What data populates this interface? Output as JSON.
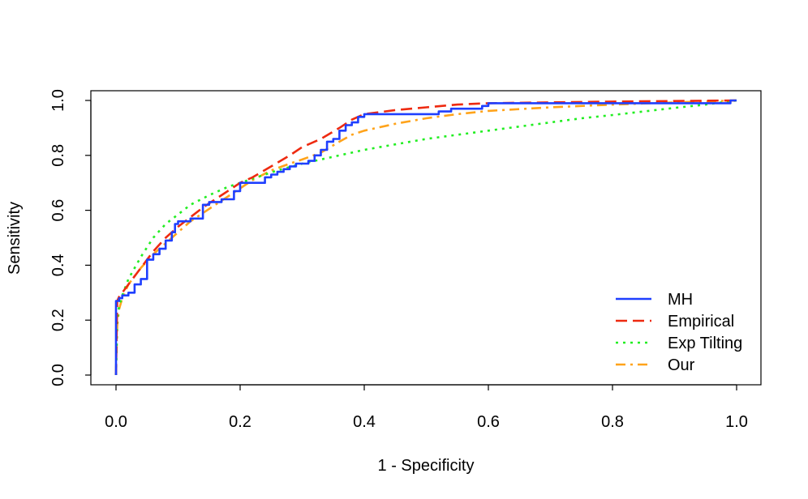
{
  "chart_data": {
    "type": "line",
    "title": "",
    "xlabel": "1 - Specificity",
    "ylabel": "Sensitivity",
    "xlim": [
      0,
      1
    ],
    "ylim": [
      0,
      1
    ],
    "xticks": [
      "0.0",
      "0.2",
      "0.4",
      "0.6",
      "0.8",
      "1.0"
    ],
    "yticks": [
      "0.0",
      "0.2",
      "0.4",
      "0.6",
      "0.8",
      "1.0"
    ],
    "legend_position": "bottom-right",
    "series": [
      {
        "name": "MH",
        "color": "#1f3fff",
        "dash": "solid",
        "step": true,
        "x": [
          0,
          0,
          0.005,
          0.01,
          0.02,
          0.03,
          0.04,
          0.05,
          0.06,
          0.07,
          0.08,
          0.09,
          0.095,
          0.1,
          0.12,
          0.14,
          0.15,
          0.17,
          0.19,
          0.2,
          0.24,
          0.25,
          0.26,
          0.27,
          0.28,
          0.29,
          0.31,
          0.32,
          0.33,
          0.34,
          0.35,
          0.36,
          0.37,
          0.38,
          0.39,
          0.4,
          0.52,
          0.54,
          0.59,
          0.6,
          0.98,
          0.99,
          1.0
        ],
        "y": [
          0,
          0.27,
          0.28,
          0.29,
          0.3,
          0.33,
          0.35,
          0.42,
          0.44,
          0.46,
          0.49,
          0.52,
          0.55,
          0.56,
          0.57,
          0.62,
          0.63,
          0.64,
          0.67,
          0.7,
          0.72,
          0.73,
          0.74,
          0.75,
          0.76,
          0.77,
          0.78,
          0.8,
          0.82,
          0.85,
          0.86,
          0.89,
          0.91,
          0.92,
          0.94,
          0.95,
          0.96,
          0.97,
          0.98,
          0.99,
          0.99,
          1.0,
          1.0
        ]
      },
      {
        "name": "Empirical",
        "color": "#ee2a10",
        "dash": "dashed",
        "step": false,
        "x": [
          0,
          0.002,
          0.005,
          0.01,
          0.02,
          0.04,
          0.06,
          0.08,
          0.1,
          0.12,
          0.14,
          0.16,
          0.18,
          0.2,
          0.22,
          0.25,
          0.28,
          0.3,
          0.33,
          0.36,
          0.38,
          0.4,
          0.45,
          0.5,
          0.55,
          0.6,
          0.7,
          0.8,
          0.9,
          1.0
        ],
        "y": [
          0,
          0.27,
          0.285,
          0.3,
          0.33,
          0.39,
          0.45,
          0.5,
          0.54,
          0.575,
          0.61,
          0.64,
          0.67,
          0.7,
          0.72,
          0.76,
          0.8,
          0.83,
          0.86,
          0.9,
          0.93,
          0.95,
          0.965,
          0.975,
          0.985,
          0.99,
          0.993,
          0.996,
          0.998,
          1.0
        ]
      },
      {
        "name": "Exp Tilting",
        "color": "#22ee22",
        "dash": "dotted",
        "step": false,
        "x": [
          0,
          0.002,
          0.005,
          0.01,
          0.02,
          0.04,
          0.06,
          0.08,
          0.1,
          0.12,
          0.15,
          0.18,
          0.22,
          0.26,
          0.3,
          0.35,
          0.4,
          0.45,
          0.5,
          0.55,
          0.6,
          0.65,
          0.7,
          0.75,
          0.8,
          0.85,
          0.9,
          0.95,
          1.0
        ],
        "y": [
          0,
          0.2,
          0.25,
          0.29,
          0.35,
          0.43,
          0.5,
          0.55,
          0.585,
          0.62,
          0.655,
          0.685,
          0.715,
          0.745,
          0.77,
          0.795,
          0.82,
          0.84,
          0.86,
          0.875,
          0.89,
          0.905,
          0.92,
          0.935,
          0.947,
          0.96,
          0.973,
          0.985,
          1.0
        ]
      },
      {
        "name": "Our",
        "color": "#ffa31a",
        "dash": "dashdot",
        "step": false,
        "x": [
          0,
          0.002,
          0.005,
          0.01,
          0.02,
          0.04,
          0.06,
          0.08,
          0.1,
          0.12,
          0.14,
          0.16,
          0.18,
          0.2,
          0.22,
          0.25,
          0.28,
          0.3,
          0.33,
          0.36,
          0.38,
          0.4,
          0.45,
          0.5,
          0.55,
          0.6,
          0.7,
          0.8,
          0.9,
          1.0
        ],
        "y": [
          0,
          0.18,
          0.24,
          0.28,
          0.33,
          0.39,
          0.44,
          0.48,
          0.52,
          0.56,
          0.59,
          0.62,
          0.65,
          0.68,
          0.71,
          0.745,
          0.77,
          0.785,
          0.81,
          0.85,
          0.875,
          0.89,
          0.915,
          0.935,
          0.95,
          0.962,
          0.975,
          0.985,
          0.993,
          1.0
        ]
      }
    ]
  }
}
